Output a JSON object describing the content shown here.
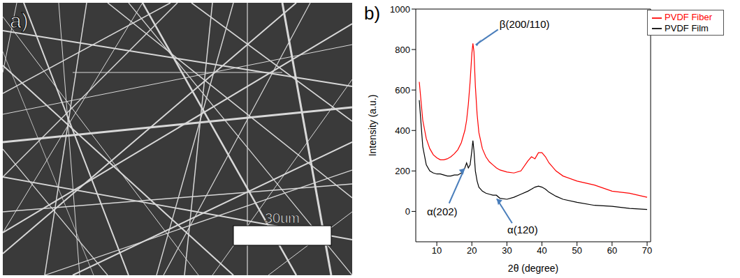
{
  "image": {
    "label": "a)",
    "scale_bar": "30um"
  },
  "chart_data": {
    "label": "b)",
    "type": "line",
    "x_label": "2θ (degree)",
    "y_label": "Intensity (a.u.)",
    "x": [
      5,
      6,
      7,
      8,
      9,
      10,
      11,
      12,
      13,
      14,
      15,
      16,
      17,
      18,
      18.5,
      19,
      19.5,
      20,
      20.3,
      20.6,
      21,
      21.5,
      22,
      23,
      24,
      25,
      26,
      27,
      28,
      30,
      32,
      34,
      36,
      37,
      38,
      39,
      40,
      41,
      42,
      44,
      46,
      50,
      55,
      60,
      65,
      70
    ],
    "series": [
      {
        "name": "PVDF Fiber",
        "color": "#ff0000",
        "values": [
          640,
          450,
          360,
          310,
          280,
          265,
          255,
          255,
          260,
          270,
          285,
          305,
          340,
          400,
          450,
          530,
          640,
          780,
          830,
          790,
          620,
          480,
          390,
          310,
          270,
          245,
          230,
          215,
          205,
          195,
          190,
          200,
          250,
          270,
          260,
          290,
          290,
          270,
          240,
          200,
          175,
          150,
          130,
          100,
          90,
          70
        ]
      },
      {
        "name": "PVDF Film",
        "color": "#000000",
        "values": [
          550,
          320,
          230,
          200,
          190,
          185,
          185,
          180,
          175,
          175,
          180,
          180,
          190,
          215,
          240,
          215,
          230,
          300,
          350,
          300,
          200,
          150,
          120,
          100,
          90,
          85,
          80,
          80,
          65,
          60,
          70,
          85,
          100,
          110,
          120,
          125,
          120,
          110,
          95,
          75,
          60,
          45,
          30,
          25,
          15,
          10
        ]
      }
    ],
    "xlim": [
      4,
      71
    ],
    "xticks": [
      10,
      20,
      30,
      40,
      50,
      60,
      70
    ],
    "ylim": [
      -150,
      1000
    ],
    "yticks": [
      0,
      200,
      400,
      600,
      800,
      1000
    ],
    "legend": "upper right",
    "annotations": [
      {
        "text": "β(200/110)",
        "x": 20.3,
        "y": 830
      },
      {
        "text": "α(202)",
        "x": 18.5,
        "y": 240
      },
      {
        "text": "α(120)",
        "x": 26.5,
        "y": 80
      }
    ]
  }
}
